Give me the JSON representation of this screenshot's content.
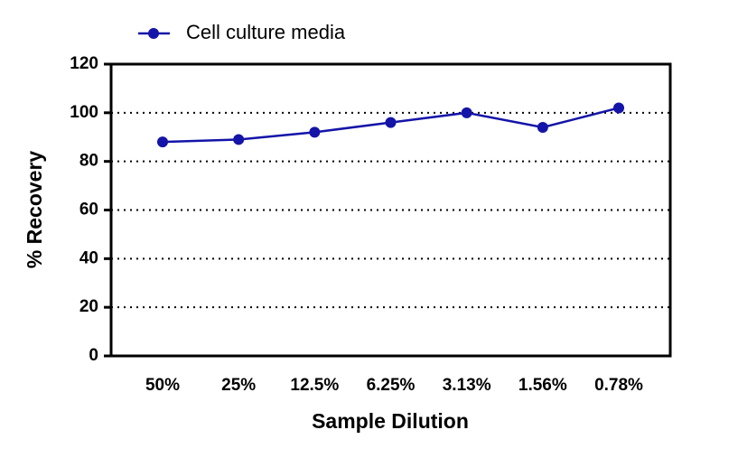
{
  "chart_data": {
    "type": "line",
    "x_label": "Sample Dilution",
    "y_label": "% Recovery",
    "categories": [
      "50%",
      "25%",
      "12.5%",
      "6.25%",
      "3.13%",
      "1.56%",
      "0.78%"
    ],
    "series": [
      {
        "name": "Cell culture media",
        "color": "#1414a8",
        "values": [
          88,
          89,
          92,
          96,
          100,
          94,
          102
        ]
      }
    ],
    "ylim": [
      0,
      120
    ],
    "yticks": [
      0,
      20,
      40,
      60,
      80,
      100,
      120
    ],
    "grid": true,
    "legend": "top"
  }
}
